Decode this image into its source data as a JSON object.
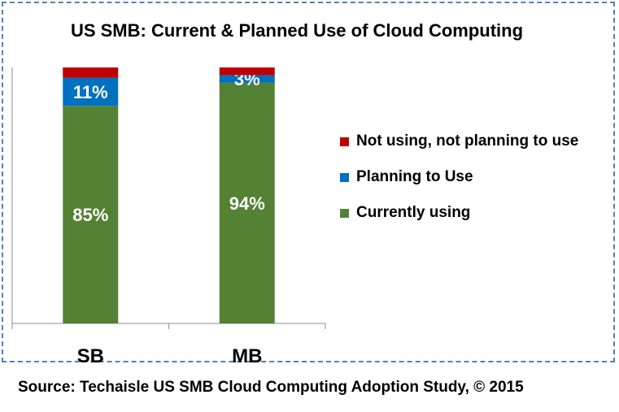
{
  "chart_data": {
    "type": "bar",
    "stacked": true,
    "title": "US SMB: Current & Planned Use of Cloud Computing",
    "xlabel": "",
    "ylabel": "",
    "ylim": [
      0,
      100
    ],
    "grid": false,
    "legend_position": "right",
    "categories": [
      "SB",
      "MB"
    ],
    "series": [
      {
        "name": "Currently using",
        "values": [
          85,
          94
        ],
        "labels": [
          "85%",
          "94%"
        ],
        "color": "#548235"
      },
      {
        "name": "Planning to Use",
        "values": [
          11,
          3
        ],
        "labels": [
          "11%",
          "3%"
        ],
        "color": "#0070c0"
      },
      {
        "name": "Not using, not planning to use",
        "values": [
          4,
          3
        ],
        "labels": [
          "",
          ""
        ],
        "color": "#c00000"
      }
    ],
    "legend_order": [
      2,
      1,
      0
    ]
  },
  "source": "Source: Techaisle US SMB Cloud Computing Adoption Study, © 2015"
}
